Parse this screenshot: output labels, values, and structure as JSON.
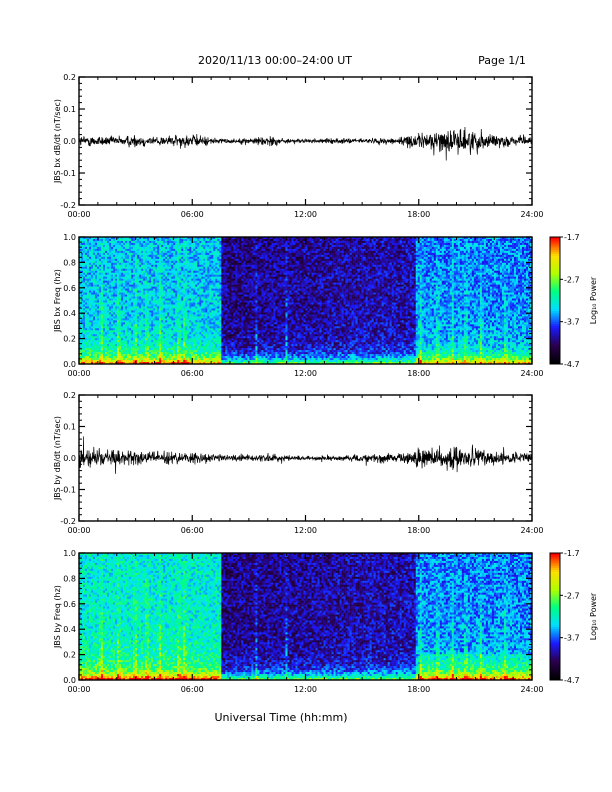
{
  "header": {
    "title": "2020/11/13  00:00–24:00 UT",
    "page": "Page 1/1"
  },
  "colors": {
    "line": "#000000",
    "colormap": [
      "#000000",
      "#2a0050",
      "#1a1aff",
      "#00e0ff",
      "#00ff80",
      "#b0ff00",
      "#ffe000",
      "#ff0000"
    ]
  },
  "chart_data": [
    {
      "type": "line",
      "ylabel": "JBS bx dB/dt (nT/sec)",
      "ylim": [
        -0.2,
        0.2
      ],
      "yticks": [
        "0.2",
        "0.1",
        "0.0",
        "-0.1",
        "-0.2"
      ],
      "xticks": [
        "00:00",
        "06:00",
        "12:00",
        "18:00",
        "24:00"
      ],
      "xlim_hours": [
        0,
        24
      ],
      "series": [
        {
          "x_hours": [
            0,
            1,
            2,
            3,
            4,
            5,
            6,
            7,
            8,
            9,
            10,
            11,
            12,
            13,
            14,
            15,
            16,
            17,
            18,
            19,
            20,
            21,
            22,
            23,
            24
          ],
          "amplitude": [
            0.015,
            0.015,
            0.012,
            0.018,
            0.012,
            0.015,
            0.018,
            0.01,
            0.006,
            0.008,
            0.016,
            0.006,
            0.005,
            0.006,
            0.007,
            0.007,
            0.008,
            0.012,
            0.02,
            0.03,
            0.035,
            0.03,
            0.02,
            0.012,
            0.01
          ]
        }
      ]
    },
    {
      "type": "heatmap",
      "ylabel": "JBS bx Freq (hz)",
      "ylim": [
        0.0,
        1.0
      ],
      "yticks": [
        "1.0",
        "0.8",
        "0.6",
        "0.4",
        "0.2",
        "0.0"
      ],
      "xticks": [
        "00:00",
        "06:00",
        "12:00",
        "18:00",
        "24:00"
      ],
      "colorbar": {
        "label": "Log₁₀ Power",
        "range": [
          -4.7,
          -1.7
        ],
        "ticks": [
          "-1.7",
          "-2.7",
          "-3.7",
          "-4.7"
        ]
      }
    },
    {
      "type": "line",
      "ylabel": "JBS by dB/dt (nT/sec)",
      "ylim": [
        -0.2,
        0.2
      ],
      "yticks": [
        "0.2",
        "0.1",
        "0.0",
        "-0.1",
        "-0.2"
      ],
      "xticks": [
        "00:00",
        "06:00",
        "12:00",
        "18:00",
        "24:00"
      ],
      "xlim_hours": [
        0,
        24
      ],
      "series": [
        {
          "x_hours": [
            0,
            1,
            2,
            3,
            4,
            5,
            6,
            7,
            8,
            9,
            10,
            11,
            12,
            13,
            14,
            15,
            16,
            17,
            18,
            19,
            20,
            21,
            22,
            23,
            24
          ],
          "amplitude": [
            0.03,
            0.025,
            0.02,
            0.02,
            0.018,
            0.018,
            0.016,
            0.014,
            0.008,
            0.009,
            0.012,
            0.007,
            0.006,
            0.008,
            0.008,
            0.01,
            0.012,
            0.014,
            0.025,
            0.03,
            0.028,
            0.025,
            0.02,
            0.015,
            0.012
          ]
        }
      ]
    },
    {
      "type": "heatmap",
      "ylabel": "JBS by Freq (hz)",
      "ylim": [
        0.0,
        1.0
      ],
      "yticks": [
        "1.0",
        "0.8",
        "0.6",
        "0.4",
        "0.2",
        "0.0"
      ],
      "xticks": [
        "00:00",
        "06:00",
        "12:00",
        "18:00",
        "24:00"
      ],
      "colorbar": {
        "label": "Log₁₀ Power",
        "range": [
          -4.7,
          -1.7
        ],
        "ticks": [
          "-1.7",
          "-2.7",
          "-3.7",
          "-4.7"
        ]
      }
    }
  ],
  "xaxis_label": "Universal Time (hh:mm)"
}
